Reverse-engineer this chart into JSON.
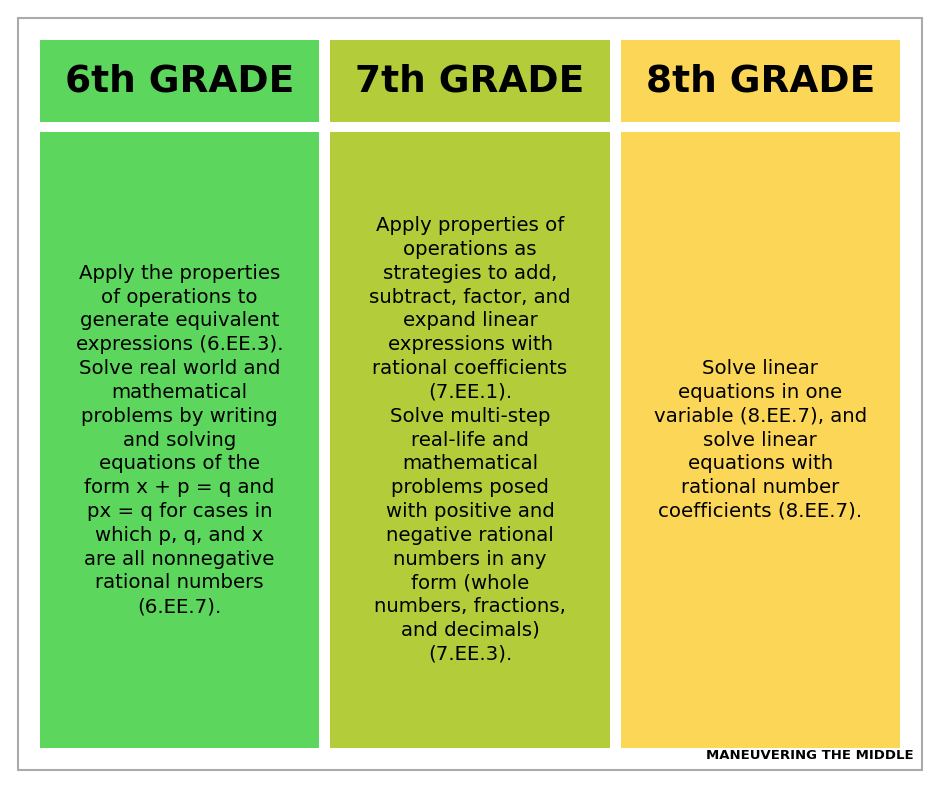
{
  "background_color": "#ffffff",
  "header_colors": [
    "#5cd65c",
    "#b3cc3a",
    "#fcd757"
  ],
  "body_colors": [
    "#5cd65c",
    "#b3cc3a",
    "#fcd757"
  ],
  "header_texts": [
    "6th GRADE",
    "7th GRADE",
    "8th GRADE"
  ],
  "body_texts": [
    "Apply the properties\nof operations to\ngenerate equivalent\nexpressions (6.EE.3).\nSolve real world and\nmathematical\nproblems by writing\nand solving\nequations of the\nform x + p = q and\npx = q for cases in\nwhich p, q, and x\nare all nonnegative\nrational numbers\n(6.EE.7).",
    "Apply properties of\noperations as\nstrategies to add,\nsubtract, factor, and\nexpand linear\nexpressions with\nrational coefficients\n(7.EE.1).\nSolve multi-step\nreal-life and\nmathematical\nproblems posed\nwith positive and\nnegative rational\nnumbers in any\nform (whole\nnumbers, fractions,\nand decimals)\n(7.EE.3).",
    "Solve linear\nequations in one\nvariable (8.EE.7), and\nsolve linear\nequations with\nrational number\ncoefficients (8.EE.7)."
  ],
  "header_fontsize": 27,
  "body_fontsize": 14.2,
  "watermark_text": "MANEUVERING THE MIDDLE",
  "watermark_fontsize": 9.5,
  "text_color": "#000000",
  "outer_border_color": "#aaaaaa",
  "fig_width": 9.4,
  "fig_height": 7.88,
  "dpi": 100
}
